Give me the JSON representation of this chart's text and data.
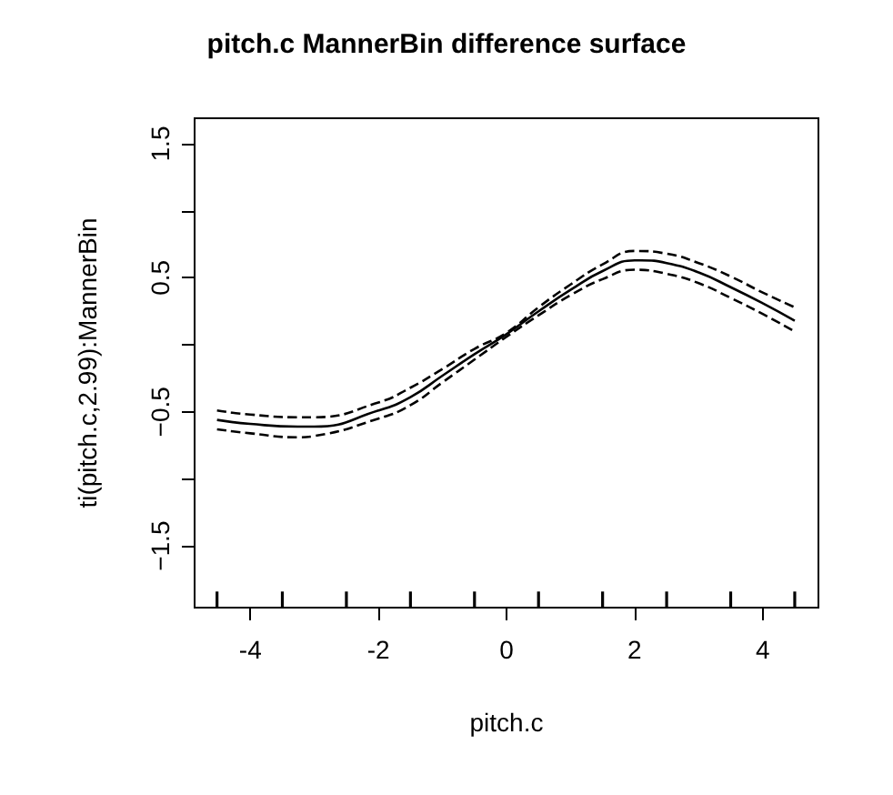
{
  "chart_data": {
    "type": "line",
    "title": "pitch.c MannerBin difference surface",
    "xlabel": "pitch.c",
    "ylabel": "ti(pitch.c,2.99):MannerBin",
    "xlim": [
      -4.87,
      4.87
    ],
    "xticks": [
      -4,
      -2,
      0,
      2,
      4
    ],
    "ylim": [
      -1.96,
      1.69
    ],
    "yticks": [
      {
        "value": -1.5,
        "label": "−1.5"
      },
      {
        "value": -1,
        "label": null
      },
      {
        "value": -0.5,
        "label": "−0.5"
      },
      {
        "value": 0,
        "label": null
      },
      0.5,
      {
        "value": 1,
        "label": null
      },
      1.5
    ],
    "grid": false,
    "marker": "none",
    "series": [
      {
        "color": "#000000",
        "line_style": "solid",
        "x": [
          -4.52,
          -4,
          -3.26,
          -3,
          -2,
          -1.5,
          -1,
          -0.5,
          0,
          0.5,
          1,
          1.5,
          2,
          2.1,
          2.5,
          3,
          3.5,
          4,
          4.5
        ],
        "values": [
          -0.56,
          -0.59,
          -0.61,
          -0.61,
          -0.49,
          -0.39,
          -0.23,
          -0.07,
          0.08,
          0.25,
          0.41,
          0.55,
          0.63,
          0.63,
          0.61,
          0.54,
          0.43,
          0.31,
          0.18
        ]
      },
      {
        "color": "#000000",
        "line_style": "dashed",
        "x": [
          -4.52,
          -4,
          -3.26,
          -3,
          -2,
          -1.5,
          -1,
          -0.5,
          0,
          0.5,
          1,
          1.5,
          2,
          2.5,
          3,
          3.5,
          4,
          4.5
        ],
        "values": [
          -0.49,
          -0.52,
          -0.54,
          -0.54,
          -0.43,
          -0.32,
          -0.18,
          -0.03,
          0.09,
          0.28,
          0.45,
          0.6,
          0.7,
          0.68,
          0.61,
          0.51,
          0.39,
          0.28
        ]
      },
      {
        "color": "#000000",
        "line_style": "dashed",
        "x": [
          -4.52,
          -4,
          -3.26,
          -3,
          -2,
          -1.5,
          -1,
          -0.5,
          0,
          0.5,
          1,
          1.5,
          2,
          2.5,
          3,
          3.5,
          4,
          4.5
        ],
        "values": [
          -0.63,
          -0.66,
          -0.69,
          -0.68,
          -0.55,
          -0.45,
          -0.28,
          -0.11,
          0.06,
          0.22,
          0.37,
          0.49,
          0.56,
          0.53,
          0.46,
          0.35,
          0.23,
          0.1
        ]
      },
      {
        "type": "bar",
        "color": "#000000",
        "x": [
          -4.52,
          -3.5,
          -2.5,
          -1.5,
          -0.5,
          0.5,
          1.5,
          2.5,
          3.5,
          4.5
        ],
        "base": [
          -1.96,
          -1.96,
          -1.96,
          -1.96,
          -1.96,
          -1.96,
          -1.96,
          -1.96,
          -1.96,
          -1.96
        ],
        "values": [
          0.12,
          0.12,
          0.12,
          0.12,
          0.12,
          0.12,
          0.12,
          0.12,
          0.12,
          0.12
        ]
      }
    ]
  }
}
